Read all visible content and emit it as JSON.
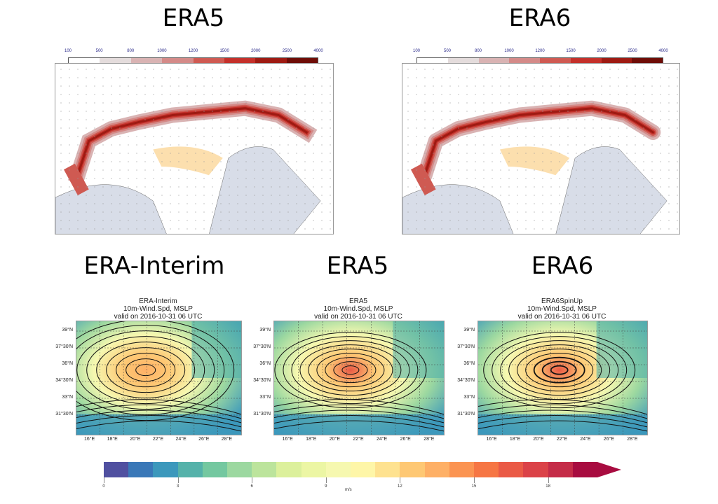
{
  "top_titles": [
    "ERA5",
    "ERA6"
  ],
  "bottom_titles": [
    "ERA-Interim",
    "ERA5",
    "ERA6"
  ],
  "precip_colorbar": {
    "labels": [
      "100",
      "500",
      "800",
      "1000",
      "1200",
      "1500",
      "2000",
      "2500",
      "4000"
    ],
    "colors": [
      "#ffffff",
      "#e4dcdc",
      "#d9b3b3",
      "#d48a88",
      "#cf5a52",
      "#c4302a",
      "#9e1a12",
      "#6e0c06"
    ]
  },
  "wind_maps": [
    {
      "title": "ERA-Interim",
      "subtitle": "10m-Wind.Spd, MSLP",
      "valid": "valid on 2016-10-31 06 UTC"
    },
    {
      "title": "ERA5",
      "subtitle": "10m-Wind.Spd, MSLP",
      "valid": "valid on 2016-10-31 06 UTC"
    },
    {
      "title": "ERA6SpinUp",
      "subtitle": "10m-Wind.Spd, MSLP",
      "valid": "valid on 2016-10-31 06 UTC"
    }
  ],
  "lat_labels": [
    "39°N",
    "37°30'N",
    "36°N",
    "34°30'N",
    "33°N",
    "31°30'N"
  ],
  "lon_labels": [
    "16°E",
    "18°E",
    "20°E",
    "22°E",
    "24°E",
    "26°E",
    "28°E"
  ],
  "wind_colorbar": {
    "labels": [
      "0",
      "3",
      "6",
      "9",
      "12",
      "15",
      "18"
    ],
    "unit": "m/s",
    "colors": [
      "#5050a0",
      "#3a78b8",
      "#3c98bc",
      "#55b2aa",
      "#74c8a0",
      "#9cd8a0",
      "#bce49c",
      "#dcf09c",
      "#ecf6a4",
      "#f6f8b0",
      "#fef6a8",
      "#fee290",
      "#fec874",
      "#feb066",
      "#fb9452",
      "#f67644",
      "#ea5a46",
      "#db4248",
      "#c52c48",
      "#a80c40"
    ]
  }
}
